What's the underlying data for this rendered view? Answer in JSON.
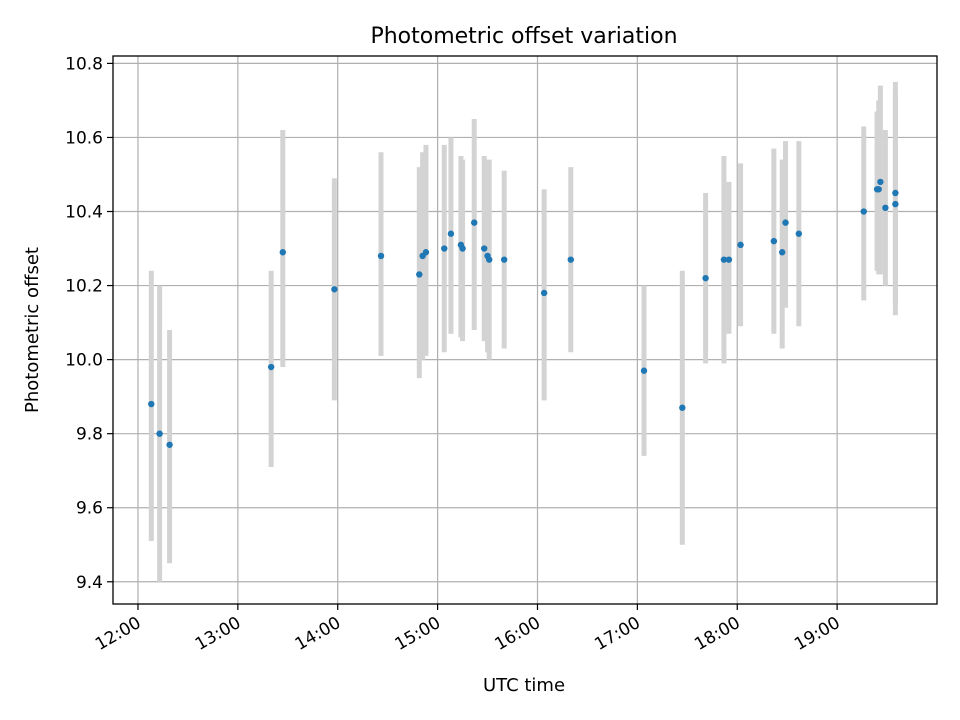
{
  "chart_data": {
    "type": "scatter",
    "title": "Photometric offset variation",
    "xlabel": "UTC time",
    "ylabel": "Photometric offset",
    "x_type": "time",
    "xlim": [
      "11:45",
      "20:00"
    ],
    "ylim": [
      9.34,
      10.82
    ],
    "x_ticks": [
      "12:00",
      "13:00",
      "14:00",
      "15:00",
      "16:00",
      "17:00",
      "18:00",
      "19:00"
    ],
    "y_ticks": [
      "9.4",
      "9.6",
      "9.8",
      "10.0",
      "10.2",
      "10.4",
      "10.6",
      "10.8"
    ],
    "grid": true,
    "marker_color": "#1f77b4",
    "errorbar_color": "#d3d3d3",
    "points": [
      {
        "x": "12:08",
        "y": 9.88,
        "err_low": 9.51,
        "err_high": 10.24
      },
      {
        "x": "12:13",
        "y": 9.8,
        "err_low": 9.4,
        "err_high": 10.2
      },
      {
        "x": "12:19",
        "y": 9.77,
        "err_low": 9.45,
        "err_high": 10.08
      },
      {
        "x": "13:20",
        "y": 9.98,
        "err_low": 9.71,
        "err_high": 10.24
      },
      {
        "x": "13:27",
        "y": 10.29,
        "err_low": 9.98,
        "err_high": 10.62
      },
      {
        "x": "13:58",
        "y": 10.19,
        "err_low": 9.89,
        "err_high": 10.49
      },
      {
        "x": "14:26",
        "y": 10.28,
        "err_low": 10.01,
        "err_high": 10.56
      },
      {
        "x": "14:49",
        "y": 10.23,
        "err_low": 9.95,
        "err_high": 10.52
      },
      {
        "x": "14:51",
        "y": 10.28,
        "err_low": 10.0,
        "err_high": 10.56
      },
      {
        "x": "14:53",
        "y": 10.29,
        "err_low": 10.01,
        "err_high": 10.58
      },
      {
        "x": "15:04",
        "y": 10.3,
        "err_low": 10.02,
        "err_high": 10.58
      },
      {
        "x": "15:08",
        "y": 10.34,
        "err_low": 10.07,
        "err_high": 10.6
      },
      {
        "x": "15:14",
        "y": 10.31,
        "err_low": 10.06,
        "err_high": 10.55
      },
      {
        "x": "15:15",
        "y": 10.3,
        "err_low": 10.05,
        "err_high": 10.54
      },
      {
        "x": "15:22",
        "y": 10.37,
        "err_low": 10.08,
        "err_high": 10.65
      },
      {
        "x": "15:28",
        "y": 10.3,
        "err_low": 10.05,
        "err_high": 10.55
      },
      {
        "x": "15:30",
        "y": 10.28,
        "err_low": 10.02,
        "err_high": 10.54
      },
      {
        "x": "15:31",
        "y": 10.27,
        "err_low": 10.0,
        "err_high": 10.54
      },
      {
        "x": "15:40",
        "y": 10.27,
        "err_low": 10.03,
        "err_high": 10.51
      },
      {
        "x": "16:04",
        "y": 10.18,
        "err_low": 9.89,
        "err_high": 10.46
      },
      {
        "x": "16:20",
        "y": 10.27,
        "err_low": 10.02,
        "err_high": 10.52
      },
      {
        "x": "17:04",
        "y": 9.97,
        "err_low": 9.74,
        "err_high": 10.2
      },
      {
        "x": "17:27",
        "y": 9.87,
        "err_low": 9.5,
        "err_high": 10.24
      },
      {
        "x": "17:41",
        "y": 10.22,
        "err_low": 9.99,
        "err_high": 10.45
      },
      {
        "x": "17:52",
        "y": 10.27,
        "err_low": 9.99,
        "err_high": 10.55
      },
      {
        "x": "17:55",
        "y": 10.27,
        "err_low": 10.07,
        "err_high": 10.48
      },
      {
        "x": "18:02",
        "y": 10.31,
        "err_low": 10.09,
        "err_high": 10.53
      },
      {
        "x": "18:22",
        "y": 10.32,
        "err_low": 10.07,
        "err_high": 10.57
      },
      {
        "x": "18:27",
        "y": 10.29,
        "err_low": 10.03,
        "err_high": 10.54
      },
      {
        "x": "18:29",
        "y": 10.37,
        "err_low": 10.14,
        "err_high": 10.59
      },
      {
        "x": "18:37",
        "y": 10.34,
        "err_low": 10.09,
        "err_high": 10.59
      },
      {
        "x": "19:16",
        "y": 10.4,
        "err_low": 10.16,
        "err_high": 10.63
      },
      {
        "x": "19:24",
        "y": 10.46,
        "err_low": 10.24,
        "err_high": 10.67
      },
      {
        "x": "19:25",
        "y": 10.46,
        "err_low": 10.23,
        "err_high": 10.7
      },
      {
        "x": "19:26",
        "y": 10.48,
        "err_low": 10.23,
        "err_high": 10.74
      },
      {
        "x": "19:29",
        "y": 10.41,
        "err_low": 10.2,
        "err_high": 10.62
      },
      {
        "x": "19:35",
        "y": 10.45,
        "err_low": 10.15,
        "err_high": 10.75
      },
      {
        "x": "19:35",
        "y": 10.42,
        "err_low": 10.12,
        "err_high": 10.72
      }
    ]
  }
}
